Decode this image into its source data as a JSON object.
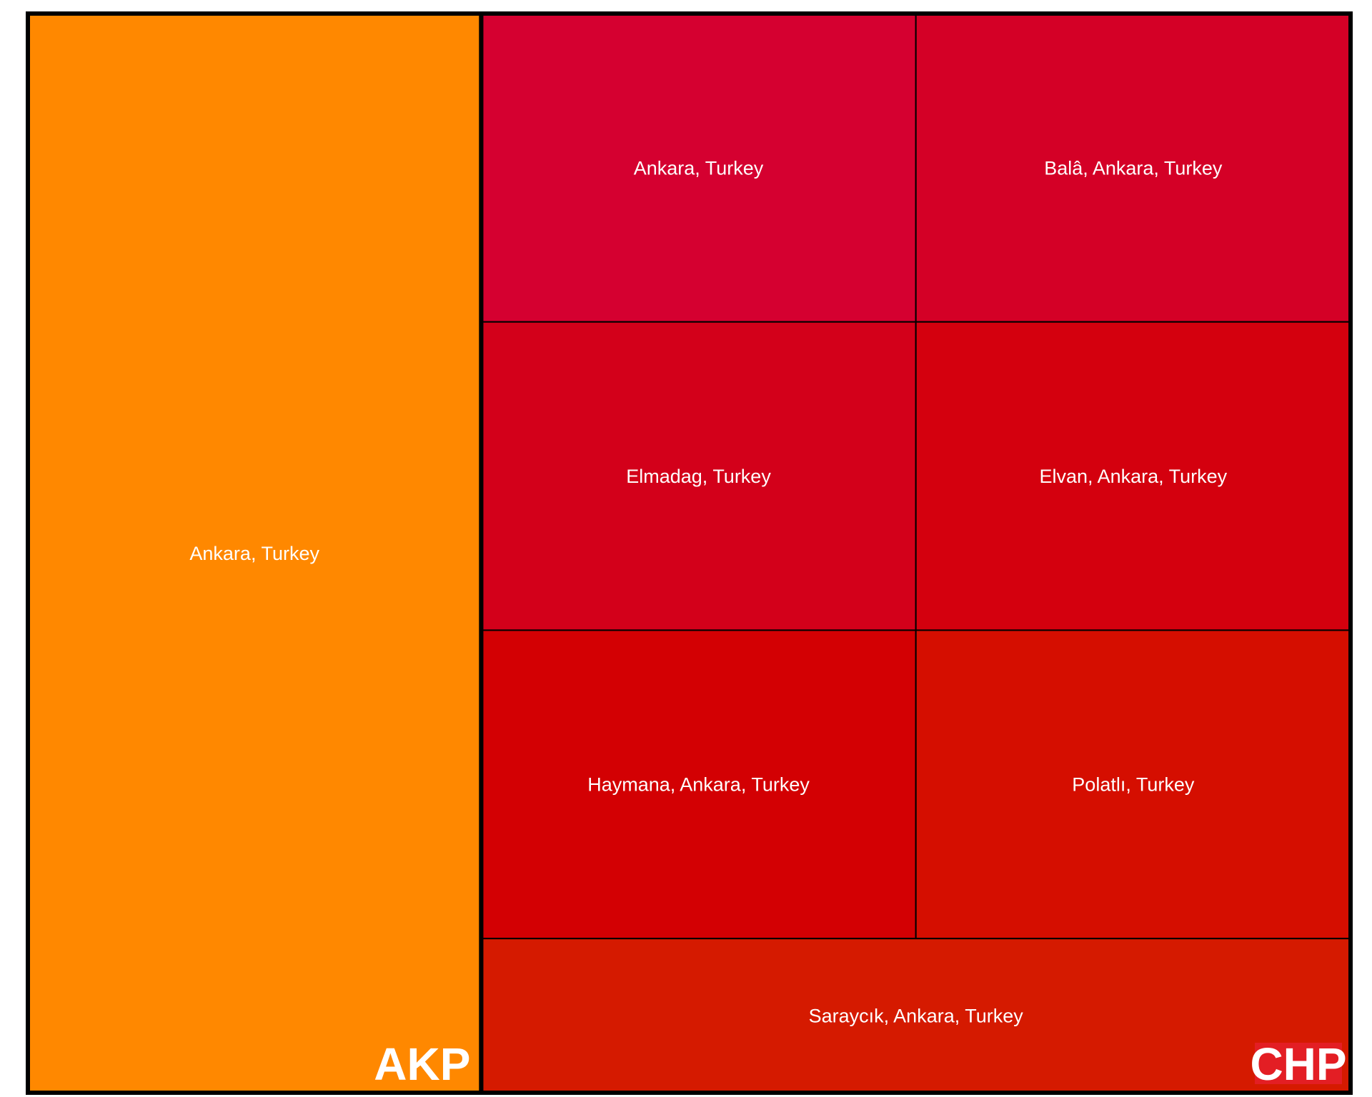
{
  "chart_data": {
    "type": "treemap",
    "title": "",
    "groups": [
      {
        "name": "AKP",
        "color": "#FF8800",
        "cells": [
          {
            "label": "Ankara, Turkey",
            "value": 3.65,
            "color": "#FF8800"
          }
        ]
      },
      {
        "name": "CHP",
        "color": "#E31E24",
        "cells": [
          {
            "label": "Ankara, Turkey",
            "value": 1,
            "color": "#D50030"
          },
          {
            "label": "Balâ, Ankara, Turkey",
            "value": 1,
            "color": "#D40026"
          },
          {
            "label": "Elmadag, Turkey",
            "value": 1,
            "color": "#D3001A"
          },
          {
            "label": "Elvan, Ankara, Turkey",
            "value": 1,
            "color": "#D4000E"
          },
          {
            "label": "Haymana, Ankara, Turkey",
            "value": 1,
            "color": "#D30003"
          },
          {
            "label": "Polatlı, Turkey",
            "value": 1,
            "color": "#D50E00"
          },
          {
            "label": "Saraycık, Ankara, Turkey",
            "value": 1,
            "color": "#D51A00"
          }
        ]
      }
    ],
    "border_color": "#000000",
    "label_color": "#FFFFFF"
  }
}
